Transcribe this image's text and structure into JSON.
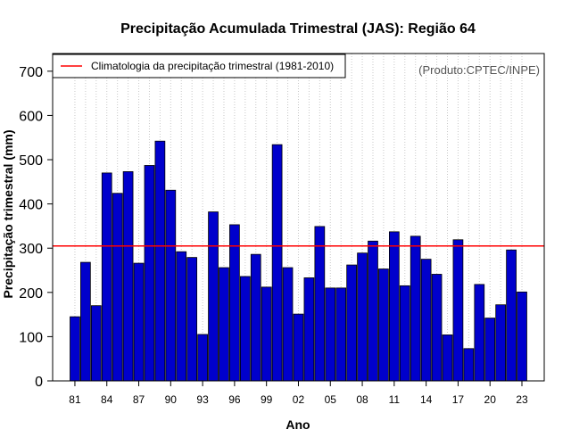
{
  "chart_data": {
    "type": "bar",
    "title": "Precipitação Acumulada Trimestral (JAS): Região 64",
    "xlabel": "Ano",
    "ylabel": "Precipitação trimestral (mm)",
    "credit": "(Produto:CPTEC/INPE)",
    "ylim": [
      0,
      740
    ],
    "yticks": [
      0,
      100,
      200,
      300,
      400,
      500,
      600,
      700
    ],
    "xtick_labels": [
      "81",
      "84",
      "87",
      "90",
      "93",
      "96",
      "99",
      "02",
      "05",
      "08",
      "11",
      "14",
      "17",
      "20",
      "23"
    ],
    "categories": [
      "1981",
      "1982",
      "1983",
      "1984",
      "1985",
      "1986",
      "1987",
      "1988",
      "1989",
      "1990",
      "1991",
      "1992",
      "1993",
      "1994",
      "1995",
      "1996",
      "1997",
      "1998",
      "1999",
      "2000",
      "2001",
      "2002",
      "2003",
      "2004",
      "2005",
      "2006",
      "2007",
      "2008",
      "2009",
      "2010",
      "2011",
      "2012",
      "2013",
      "2014",
      "2015",
      "2016",
      "2017",
      "2018",
      "2019",
      "2020",
      "2021",
      "2022",
      "2023"
    ],
    "values": [
      145,
      268,
      170,
      470,
      424,
      473,
      266,
      487,
      542,
      431,
      292,
      279,
      105,
      382,
      256,
      353,
      236,
      286,
      212,
      534,
      256,
      151,
      233,
      349,
      210,
      210,
      262,
      289,
      316,
      253,
      337,
      215,
      327,
      275,
      241,
      104,
      319,
      73,
      218,
      142,
      172,
      296,
      201
    ],
    "climatology": {
      "label": "Climatologia da precipitação trimestral (1981-2010)",
      "value": 305
    },
    "colors": {
      "bar_fill": "#0000cc",
      "bar_stroke": "#000000",
      "climatology_line": "#ff0000",
      "grid": "#c8c8c8"
    },
    "grid": true,
    "legend_position": "top-left"
  }
}
